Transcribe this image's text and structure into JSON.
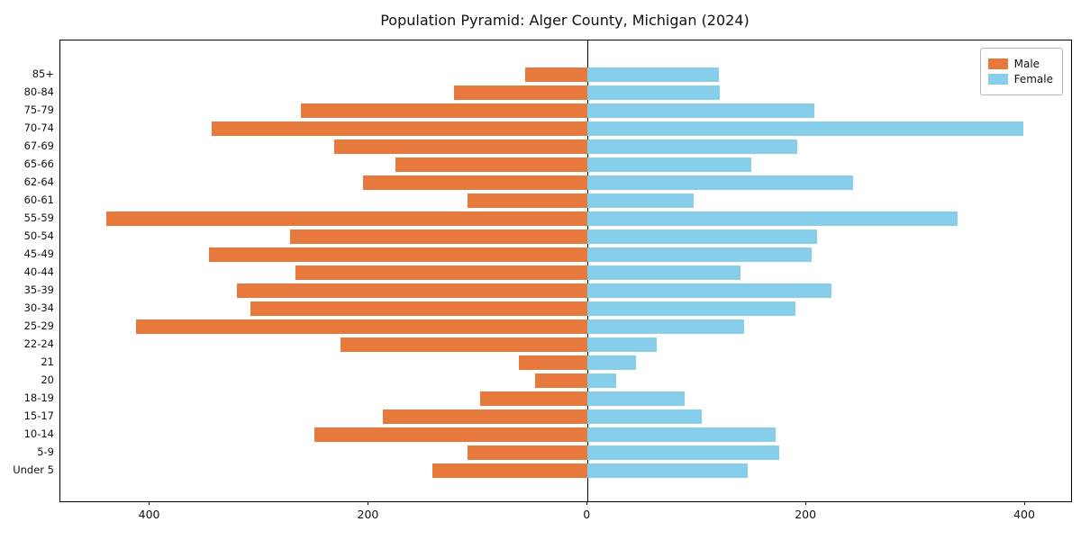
{
  "figure": {
    "title": "Population Pyramid: Alger County, Michigan (2024)"
  },
  "chart_data": {
    "type": "bar",
    "subtype": "population-pyramid",
    "orientation": "horizontal",
    "title": "Population Pyramid: Alger County, Michigan (2024)",
    "xlabel": "",
    "ylabel": "",
    "grid": false,
    "legend_position": "upper right",
    "categories_order": "top-to-bottom",
    "categories": [
      "85+",
      "80-84",
      "75-79",
      "70-74",
      "67-69",
      "65-66",
      "62-64",
      "60-61",
      "55-59",
      "50-54",
      "45-49",
      "40-44",
      "35-39",
      "30-34",
      "25-29",
      "22-24",
      "21",
      "20",
      "18-19",
      "15-17",
      "10-14",
      "5-9",
      "Under 5"
    ],
    "series": [
      {
        "name": "Male",
        "side": "left",
        "color": "#e8793d",
        "values": [
          57,
          122,
          262,
          344,
          232,
          176,
          205,
          110,
          440,
          272,
          346,
          267,
          321,
          308,
          413,
          226,
          63,
          48,
          98,
          187,
          250,
          110,
          142
        ]
      },
      {
        "name": "Female",
        "side": "right",
        "color": "#87ceeb",
        "values": [
          120,
          121,
          207,
          398,
          192,
          150,
          243,
          97,
          338,
          210,
          205,
          140,
          223,
          190,
          143,
          63,
          44,
          26,
          89,
          104,
          172,
          175,
          146
        ]
      }
    ],
    "xlim": [
      -482,
      442
    ],
    "x_ticks": [
      {
        "value": -400,
        "label": "400"
      },
      {
        "value": -200,
        "label": "200"
      },
      {
        "value": 0,
        "label": "0"
      },
      {
        "value": 200,
        "label": "200"
      },
      {
        "value": 400,
        "label": "400"
      }
    ],
    "zero_line_color": "#000000"
  }
}
